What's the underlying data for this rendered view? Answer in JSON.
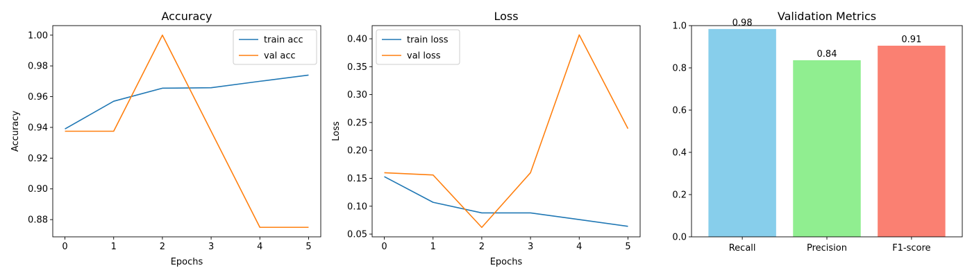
{
  "chart_data": [
    {
      "type": "line",
      "title": "Accuracy",
      "xlabel": "Epochs",
      "ylabel": "Accuracy",
      "x": [
        0,
        1,
        2,
        3,
        4,
        5
      ],
      "xticks": [
        "0",
        "1",
        "2",
        "3",
        "4",
        "5"
      ],
      "xlim": [
        -0.25,
        5.25
      ],
      "ylim": [
        0.8688,
        1.0062
      ],
      "yticks": [
        "0.88",
        "0.90",
        "0.92",
        "0.94",
        "0.96",
        "0.98",
        "1.00"
      ],
      "ytick_values": [
        0.88,
        0.9,
        0.92,
        0.94,
        0.96,
        0.98,
        1.0
      ],
      "legend_position": "top-right",
      "series": [
        {
          "name": "train acc",
          "color": "#1f77b4",
          "values": [
            0.939,
            0.957,
            0.9655,
            0.9658,
            0.97,
            0.974
          ]
        },
        {
          "name": "val acc",
          "color": "#ff7f0e",
          "values": [
            0.9375,
            0.9375,
            1.0,
            0.9375,
            0.875,
            0.875
          ]
        }
      ]
    },
    {
      "type": "line",
      "title": "Loss",
      "xlabel": "Epochs",
      "ylabel": "Loss",
      "x": [
        0,
        1,
        2,
        3,
        4,
        5
      ],
      "xticks": [
        "0",
        "1",
        "2",
        "3",
        "4",
        "5"
      ],
      "xlim": [
        -0.25,
        5.25
      ],
      "ylim": [
        0.0451,
        0.4236
      ],
      "yticks": [
        "0.05",
        "0.10",
        "0.15",
        "0.20",
        "0.25",
        "0.30",
        "0.35",
        "0.40"
      ],
      "ytick_values": [
        0.05,
        0.1,
        0.15,
        0.2,
        0.25,
        0.3,
        0.35,
        0.4
      ],
      "legend_position": "top-left",
      "series": [
        {
          "name": "train loss",
          "color": "#1f77b4",
          "values": [
            0.153,
            0.107,
            0.088,
            0.088,
            0.076,
            0.064
          ]
        },
        {
          "name": "val loss",
          "color": "#ff7f0e",
          "values": [
            0.16,
            0.156,
            0.062,
            0.16,
            0.407,
            0.239
          ]
        }
      ]
    },
    {
      "type": "bar",
      "title": "Validation Metrics",
      "xlabel": "",
      "ylabel": "",
      "categories": [
        "Recall",
        "Precision",
        "F1-score"
      ],
      "values": [
        0.984,
        0.836,
        0.905
      ],
      "labels": [
        "0.98",
        "0.84",
        "0.91"
      ],
      "colors": [
        "#87ceeb",
        "#90ee90",
        "#fa8072"
      ],
      "ylim": [
        0,
        1.0
      ],
      "yticks": [
        "0.0",
        "0.2",
        "0.4",
        "0.6",
        "0.8",
        "1.0"
      ],
      "ytick_values": [
        0.0,
        0.2,
        0.4,
        0.6,
        0.8,
        1.0
      ]
    }
  ]
}
